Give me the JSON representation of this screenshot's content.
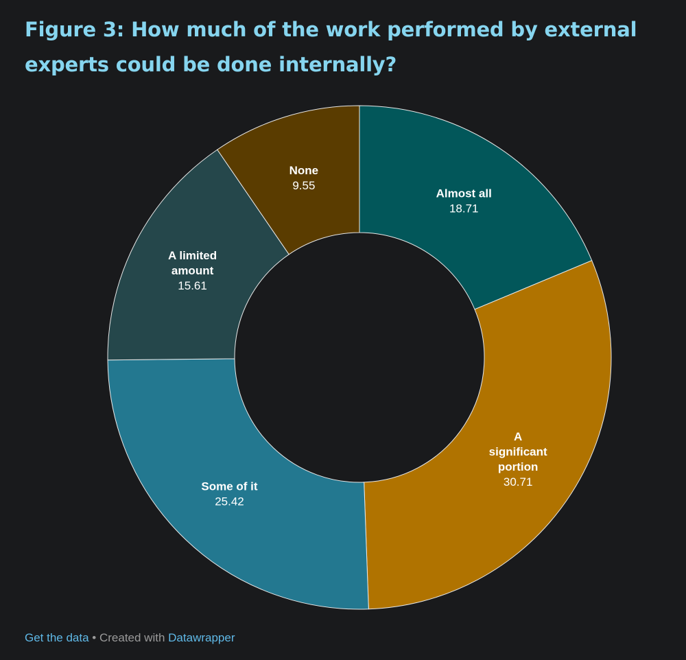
{
  "title": "Figure 3: How much of the work performed by external experts could be done internally?",
  "chart_data": {
    "type": "pie",
    "donut": true,
    "categories": [
      "Almost all",
      "A significant portion",
      "Some of it",
      "A limited amount",
      "None"
    ],
    "values": [
      18.71,
      30.71,
      25.42,
      15.61,
      9.55
    ],
    "colors": [
      "#02575a",
      "#b07300",
      "#237890",
      "#25474b",
      "#5a3c00"
    ],
    "label_lines": [
      [
        "Almost all"
      ],
      [
        "A",
        "significant",
        "portion"
      ],
      [
        "Some of it"
      ],
      [
        "A limited",
        "amount"
      ],
      [
        "None"
      ]
    ],
    "value_labels": [
      "18.71",
      "30.71",
      "25.42",
      "15.61",
      "9.55"
    ],
    "start_angle": "12 o'clock",
    "direction": "clockwise"
  },
  "footer": {
    "get_data": "Get the data",
    "separator": " • ",
    "created_with": "Created with ",
    "tool": "Datawrapper"
  }
}
